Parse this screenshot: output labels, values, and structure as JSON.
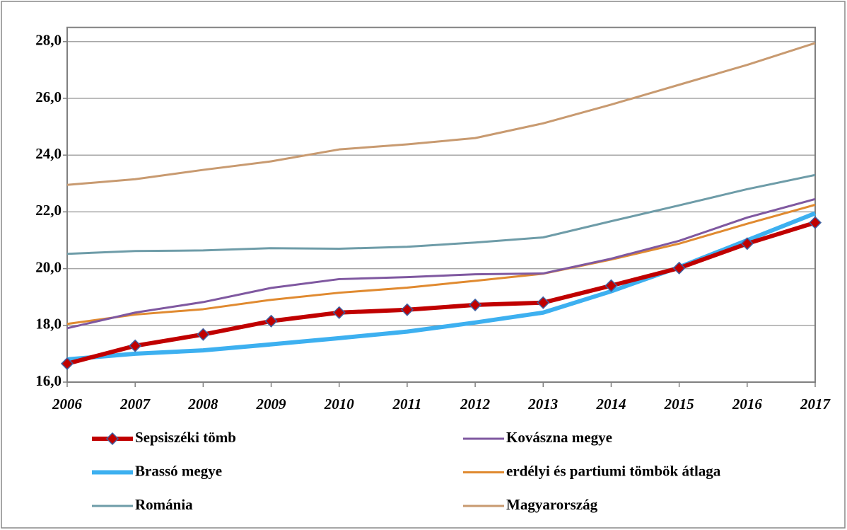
{
  "chart_data": {
    "type": "line",
    "categories": [
      "2006",
      "2007",
      "2008",
      "2009",
      "2010",
      "2011",
      "2012",
      "2013",
      "2014",
      "2015",
      "2016",
      "2017"
    ],
    "ylim": [
      16,
      28.5
    ],
    "yticks": [
      {
        "value": 16,
        "label": "16,0"
      },
      {
        "value": 18,
        "label": "18,0"
      },
      {
        "value": 20,
        "label": "20,0"
      },
      {
        "value": 22,
        "label": "22,0"
      },
      {
        "value": 24,
        "label": "24,0"
      },
      {
        "value": 26,
        "label": "26,0"
      },
      {
        "value": 28,
        "label": "28,0"
      }
    ],
    "grid": true,
    "series": [
      {
        "name": "Sepsiszéki tömb",
        "color": "#c00000",
        "marker": "diamond",
        "values": [
          16.65,
          17.28,
          17.68,
          18.15,
          18.45,
          18.55,
          18.72,
          18.8,
          19.4,
          20.02,
          20.88,
          21.62
        ]
      },
      {
        "name": "Kovászna megye",
        "color": "#7f58a0",
        "values": [
          17.9,
          18.45,
          18.82,
          19.32,
          19.63,
          19.7,
          19.8,
          19.83,
          20.35,
          20.98,
          21.8,
          22.45
        ]
      },
      {
        "name": "Brassó megye",
        "color": "#3db0f0",
        "values": [
          16.8,
          17.0,
          17.12,
          17.33,
          17.55,
          17.78,
          18.1,
          18.45,
          19.2,
          20.05,
          21.0,
          21.95
        ]
      },
      {
        "name": "erdélyi és partiumi tömbök átlaga",
        "color": "#e08a30",
        "values": [
          18.05,
          18.38,
          18.57,
          18.9,
          19.15,
          19.33,
          19.57,
          19.82,
          20.32,
          20.88,
          21.58,
          22.25
        ]
      },
      {
        "name": "Románia",
        "color": "#6e9ca8",
        "values": [
          20.52,
          20.62,
          20.64,
          20.72,
          20.7,
          20.77,
          20.92,
          21.1,
          21.67,
          22.23,
          22.8,
          23.3
        ]
      },
      {
        "name": "Magyarország",
        "color": "#c89a70",
        "values": [
          22.95,
          23.15,
          23.48,
          23.78,
          24.2,
          24.38,
          24.6,
          25.12,
          25.78,
          26.48,
          27.18,
          27.95
        ]
      }
    ]
  }
}
